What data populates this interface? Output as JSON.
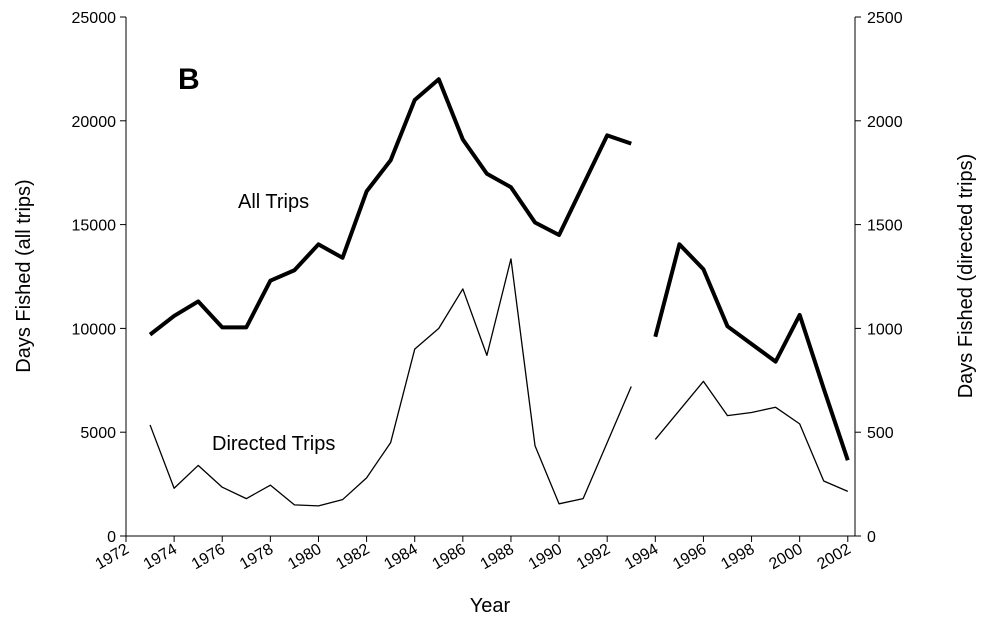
{
  "chart_data": {
    "type": "line",
    "panel_label": "B",
    "x_label": "Year",
    "y_label": "Days Fished (all trips)",
    "y2_label": "Days Fished (directed trips)",
    "x": [
      1973,
      1974,
      1975,
      1976,
      1977,
      1978,
      1979,
      1980,
      1981,
      1982,
      1983,
      1984,
      1985,
      1986,
      1987,
      1988,
      1989,
      1990,
      1991,
      1992,
      1993,
      null,
      1994,
      1995,
      1996,
      1997,
      1998,
      1999,
      2000,
      2001,
      2002
    ],
    "series": [
      {
        "name": "All Trips",
        "color": "#000000",
        "width": 4,
        "values": [
          9700,
          10600,
          11300,
          10050,
          10050,
          12300,
          12800,
          14050,
          13400,
          16600,
          18100,
          21000,
          22000,
          19100,
          17450,
          16800,
          15100,
          14500,
          16900,
          19300,
          18900,
          null,
          9600,
          14050,
          12850,
          10100,
          9250,
          8400,
          10650,
          7100,
          3650
        ]
      },
      {
        "name": "Directed Trips",
        "color": "#000000",
        "width": 1.3,
        "axis": "y2",
        "values": [
          535,
          230,
          340,
          235,
          180,
          245,
          150,
          145,
          175,
          280,
          450,
          900,
          1000,
          1190,
          870,
          1335,
          435,
          155,
          180,
          450,
          720,
          null,
          465,
          605,
          745,
          580,
          595,
          620,
          540,
          265,
          215
        ]
      }
    ],
    "xlim": [
      1972,
      2002.3
    ],
    "xticks": [
      1972,
      1974,
      1976,
      1978,
      1980,
      1982,
      1984,
      1986,
      1988,
      1990,
      1992,
      1994,
      1996,
      1998,
      2000,
      2002
    ],
    "ylim": [
      0,
      25000
    ],
    "yticks": [
      0,
      5000,
      10000,
      15000,
      20000,
      25000
    ],
    "y2lim": [
      0,
      2500
    ],
    "y2ticks": [
      0,
      500,
      1000,
      1500,
      2000,
      2500
    ]
  }
}
